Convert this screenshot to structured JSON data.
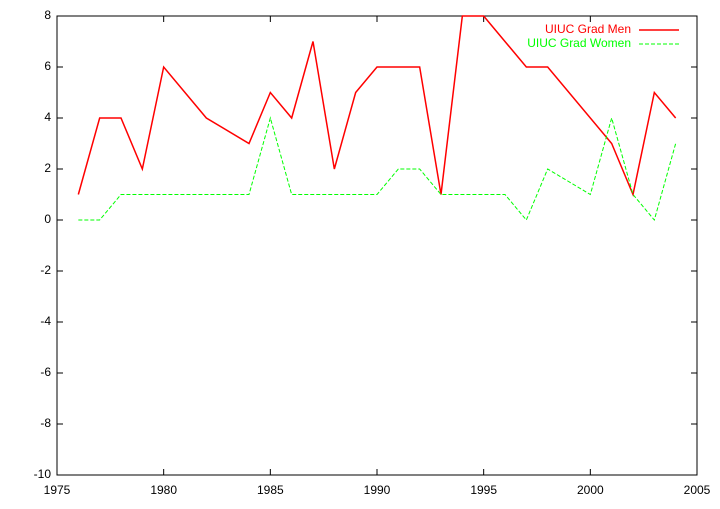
{
  "chart_data": {
    "type": "line",
    "xlim": [
      1975,
      2005
    ],
    "xticks": [
      1975,
      1980,
      1985,
      1990,
      1995,
      2000,
      2005
    ],
    "ylim": [
      -10,
      8
    ],
    "yticks": [
      -10,
      -8,
      -6,
      -4,
      -2,
      0,
      2,
      4,
      6,
      8
    ],
    "legend": "top-right",
    "series": [
      {
        "name": "UIUC Grad Men",
        "color": "#ff0000",
        "dash": "solid",
        "x": [
          1976,
          1977,
          1978,
          1979,
          1980,
          1982,
          1984,
          1985,
          1986,
          1987,
          1988,
          1989,
          1990,
          1991,
          1992,
          1993,
          1994,
          1995,
          1997,
          1998,
          2001,
          2002,
          2003,
          2004
        ],
        "values": [
          1,
          4,
          4,
          2,
          6,
          4,
          3,
          5,
          4,
          7,
          2,
          5,
          6,
          6,
          6,
          1,
          8,
          8,
          6,
          6,
          3,
          1,
          5,
          4
        ]
      },
      {
        "name": "UIUC Grad Women",
        "color": "#00ff00",
        "dash": "dashed",
        "x": [
          1976,
          1977,
          1978,
          1979,
          1980,
          1981,
          1982,
          1983,
          1984,
          1985,
          1986,
          1987,
          1988,
          1989,
          1990,
          1991,
          1992,
          1993,
          1994,
          1995,
          1996,
          1997,
          1998,
          2000,
          2001,
          2002,
          2003,
          2004
        ],
        "values": [
          0,
          0,
          1,
          1,
          1,
          1,
          1,
          1,
          1,
          4,
          1,
          1,
          1,
          1,
          1,
          2,
          2,
          1,
          1,
          1,
          1,
          0,
          2,
          1,
          4,
          1,
          0,
          3
        ]
      }
    ]
  }
}
